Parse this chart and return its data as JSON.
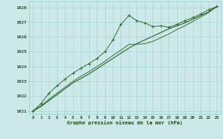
{
  "title": "Graphe pression niveau de la mer (hPa)",
  "hours": [
    0,
    1,
    2,
    3,
    4,
    5,
    6,
    7,
    8,
    9,
    10,
    11,
    12,
    13,
    14,
    15,
    16,
    17,
    18,
    19,
    20,
    21,
    22,
    23
  ],
  "series_marked": [
    1021.0,
    1021.5,
    1022.2,
    1022.7,
    1023.15,
    1023.55,
    1023.9,
    1024.2,
    1024.55,
    1025.0,
    1025.8,
    1026.85,
    1027.45,
    1027.1,
    1026.95,
    1026.7,
    1026.75,
    1026.65,
    1026.85,
    1027.1,
    1027.3,
    1027.55,
    1027.85,
    1028.05
  ],
  "series_straight": [
    1021.0,
    1021.3,
    1021.7,
    1022.1,
    1022.5,
    1022.9,
    1023.2,
    1023.5,
    1023.85,
    1024.2,
    1024.55,
    1024.9,
    1025.25,
    1025.55,
    1025.8,
    1026.05,
    1026.3,
    1026.55,
    1026.75,
    1026.95,
    1027.2,
    1027.45,
    1027.7,
    1028.05
  ],
  "series_smooth": [
    1021.0,
    1021.35,
    1021.8,
    1022.2,
    1022.6,
    1023.0,
    1023.35,
    1023.65,
    1024.0,
    1024.35,
    1024.75,
    1025.1,
    1025.5,
    1025.5,
    1025.55,
    1025.7,
    1025.95,
    1026.2,
    1026.5,
    1026.75,
    1027.05,
    1027.35,
    1027.65,
    1028.05
  ],
  "line_color": "#2d6a2d",
  "bg_color": "#cce8e8",
  "grid_color": "#99cccc",
  "text_color": "#1a4d1a",
  "ylim_min": 1020.8,
  "ylim_max": 1028.4,
  "yticks": [
    1021,
    1022,
    1023,
    1024,
    1025,
    1026,
    1027,
    1028
  ]
}
